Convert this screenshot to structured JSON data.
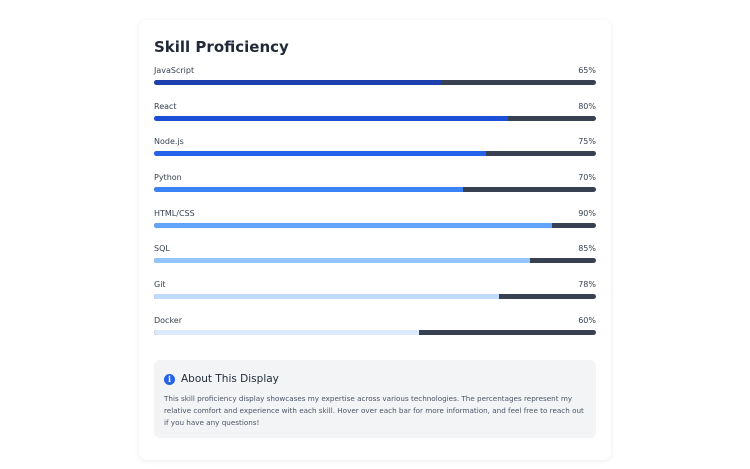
{
  "card": {
    "title": "Skill Proficiency"
  },
  "skills": [
    {
      "name": "JavaScript",
      "percent_label": "65%",
      "level": 65,
      "color": "#1e40af"
    },
    {
      "name": "React",
      "percent_label": "80%",
      "level": 80,
      "color": "#1d4ed8"
    },
    {
      "name": "Node.js",
      "percent_label": "75%",
      "level": 75,
      "color": "#2563eb"
    },
    {
      "name": "Python",
      "percent_label": "70%",
      "level": 70,
      "color": "#3b82f6"
    },
    {
      "name": "HTML/CSS",
      "percent_label": "90%",
      "level": 90,
      "color": "#60a5fa"
    },
    {
      "name": "SQL",
      "percent_label": "85%",
      "level": 85,
      "color": "#93c5fd"
    },
    {
      "name": "Git",
      "percent_label": "78%",
      "level": 78,
      "color": "#bfdbfe"
    },
    {
      "name": "Docker",
      "percent_label": "60%",
      "level": 60,
      "color": "#dbeafe"
    }
  ],
  "track_color": "#374151",
  "info": {
    "icon": "info-icon",
    "icon_glyph": "i",
    "title": "About This Display",
    "text": "This skill proficiency display showcases my expertise across various technologies. The percentages represent my relative comfort and experience with each skill. Hover over each bar for more information, and feel free to reach out if you have any questions!"
  }
}
